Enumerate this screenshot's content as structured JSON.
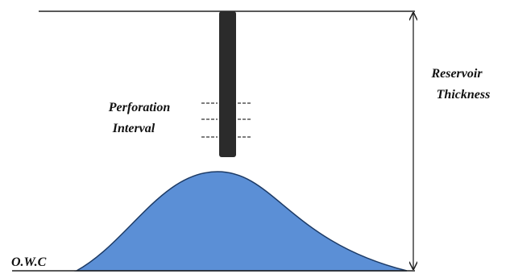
{
  "labels": {
    "perforation_interval": [
      "Perforation",
      "Interval"
    ],
    "reservoir_thickness": [
      "Reservoir",
      "Thickness"
    ],
    "owc": "O.W.C"
  }
}
